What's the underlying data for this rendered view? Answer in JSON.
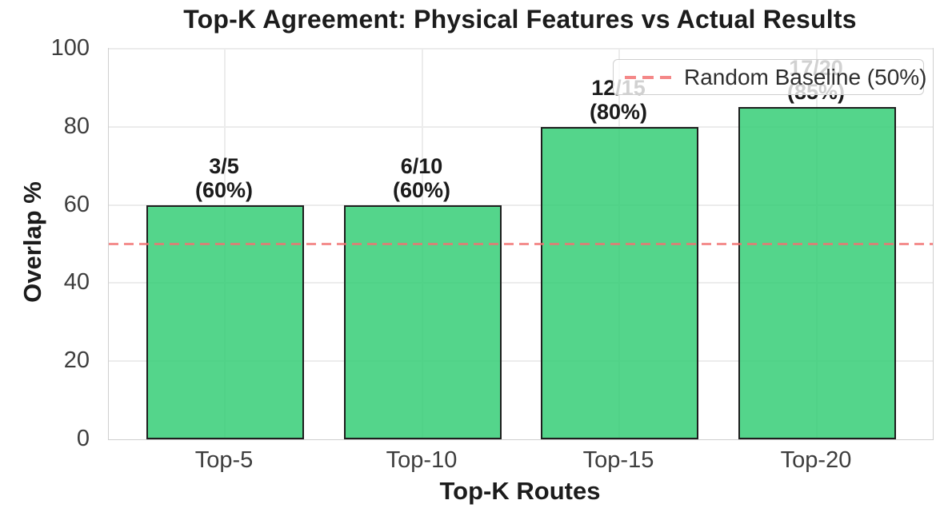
{
  "chart_data": {
    "type": "bar",
    "title": "Top-K Agreement: Physical Features vs Actual Results",
    "xlabel": "Top-K Routes",
    "ylabel": "Overlap %",
    "categories": [
      "Top-5",
      "Top-10",
      "Top-15",
      "Top-20"
    ],
    "values": [
      60,
      60,
      80,
      85
    ],
    "bar_labels": [
      {
        "line1": "3/5",
        "line2": "(60%)"
      },
      {
        "line1": "6/10",
        "line2": "(60%)"
      },
      {
        "line1": "12/15",
        "line2": "(80%)"
      },
      {
        "line1": "17/20",
        "line2": "(85%)"
      }
    ],
    "ylim": [
      0,
      100
    ],
    "yticks": [
      0,
      20,
      40,
      60,
      80,
      100
    ],
    "grid": true,
    "legend_position": "upper right",
    "baseline": {
      "value": 50,
      "label": "Random Baseline (50%)"
    },
    "colors": {
      "bar_fill": "#2ecc71",
      "bar_fill_alpha": 0.82,
      "bar_edge": "#1e1e1e",
      "baseline_line": "#f17171",
      "grid": "#ececec"
    }
  }
}
